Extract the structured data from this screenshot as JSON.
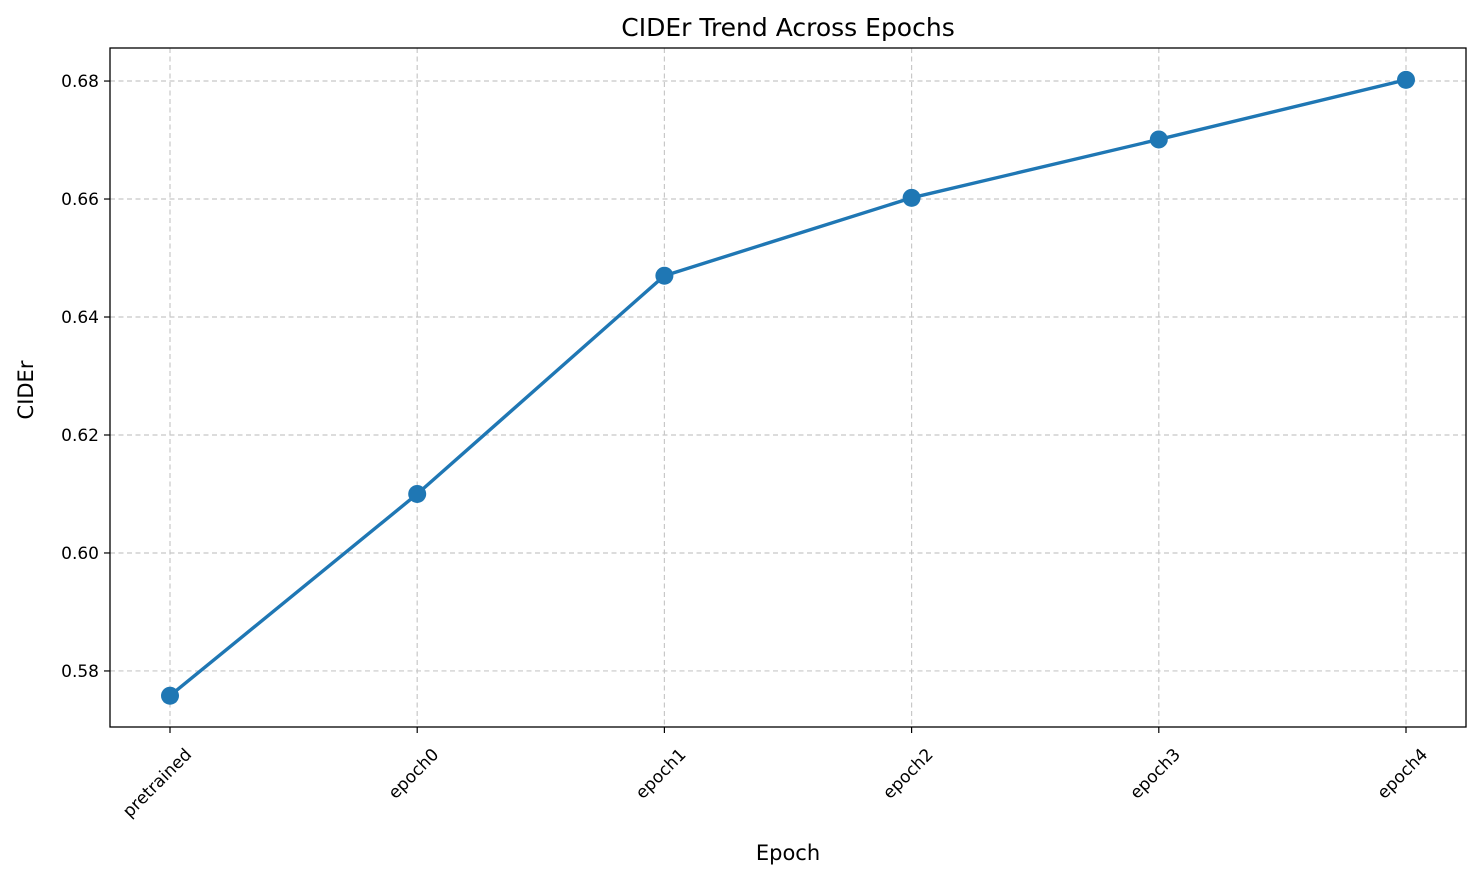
{
  "chart_data": {
    "type": "line",
    "title": "CIDEr Trend Across Epochs",
    "xlabel": "Epoch",
    "ylabel": "CIDEr",
    "categories": [
      "pretrained",
      "epoch0",
      "epoch1",
      "epoch2",
      "epoch3",
      "epoch4"
    ],
    "series": [
      {
        "values": [
          0.5758,
          0.61,
          0.647,
          0.6602,
          0.6701,
          0.6802
        ],
        "color": "#1f77b4",
        "marker": "circle"
      }
    ],
    "ylim": [
      0.5705,
      0.6856
    ],
    "yticks": [
      0.58,
      0.6,
      0.62,
      0.64,
      0.66,
      0.68
    ],
    "ytick_labels": [
      "0.58",
      "0.60",
      "0.62",
      "0.64",
      "0.66",
      "0.68"
    ],
    "grid": true,
    "legend": "none",
    "xtick_rotation": 45
  }
}
